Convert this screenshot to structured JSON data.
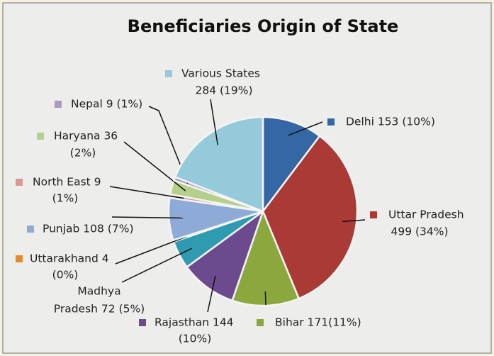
{
  "chart_data": {
    "type": "pie",
    "title": "Beneficiaries Origin of State",
    "values": [
      153,
      499,
      171,
      144,
      72,
      4,
      108,
      9,
      36,
      9,
      284
    ],
    "labels": [
      [
        "Delhi 153 (10%)"
      ],
      [
        "Uttar Pradesh",
        "499 (34%)"
      ],
      [
        "Bihar 171(11%)"
      ],
      [
        "Rajasthan 144",
        "(10%)"
      ],
      [
        "Madhya",
        "Pradesh 72 (5%)"
      ],
      [
        "Uttarakhand 4",
        "(0%)"
      ],
      [
        "Punjab 108 (7%)"
      ],
      [
        "North East 9",
        "(1%)"
      ],
      [
        "Haryana 36",
        "(2%)"
      ],
      [
        "Nepal 9 (1%)"
      ],
      [
        "Various States",
        "284 (19%)"
      ]
    ],
    "colors": [
      "#3567a5",
      "#a93a36",
      "#8aa83d",
      "#6b4b8d",
      "#2f9bb0",
      "#e58a2f",
      "#8eaad6",
      "#da9895",
      "#b5d08b",
      "#a99ac4",
      "#95cadb"
    ]
  }
}
